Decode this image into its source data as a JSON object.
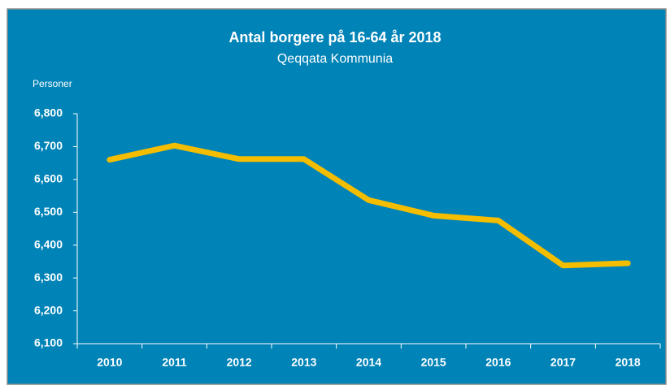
{
  "chart_data": {
    "type": "line",
    "title": "Antal borgere på 16-64 år 2018",
    "subtitle": "Qeqqata Kommunia",
    "y_label": "Personer",
    "categories": [
      "2010",
      "2011",
      "2012",
      "2013",
      "2014",
      "2015",
      "2016",
      "2017",
      "2018"
    ],
    "series": [
      {
        "name": "Antal borgere",
        "color": "#f5bd00",
        "values": [
          6660,
          6703,
          6662,
          6662,
          6537,
          6490,
          6475,
          6338,
          6345
        ]
      }
    ],
    "ylim": [
      6100,
      6800
    ],
    "yticks": [
      {
        "value": 6100,
        "label": "6,100"
      },
      {
        "value": 6200,
        "label": "6,200"
      },
      {
        "value": 6300,
        "label": "6,300"
      },
      {
        "value": 6400,
        "label": "6,400"
      },
      {
        "value": 6500,
        "label": "6,500"
      },
      {
        "value": 6600,
        "label": "6,600"
      },
      {
        "value": 6700,
        "label": "6,700"
      },
      {
        "value": 6800,
        "label": "6,800"
      }
    ],
    "grid": false
  }
}
